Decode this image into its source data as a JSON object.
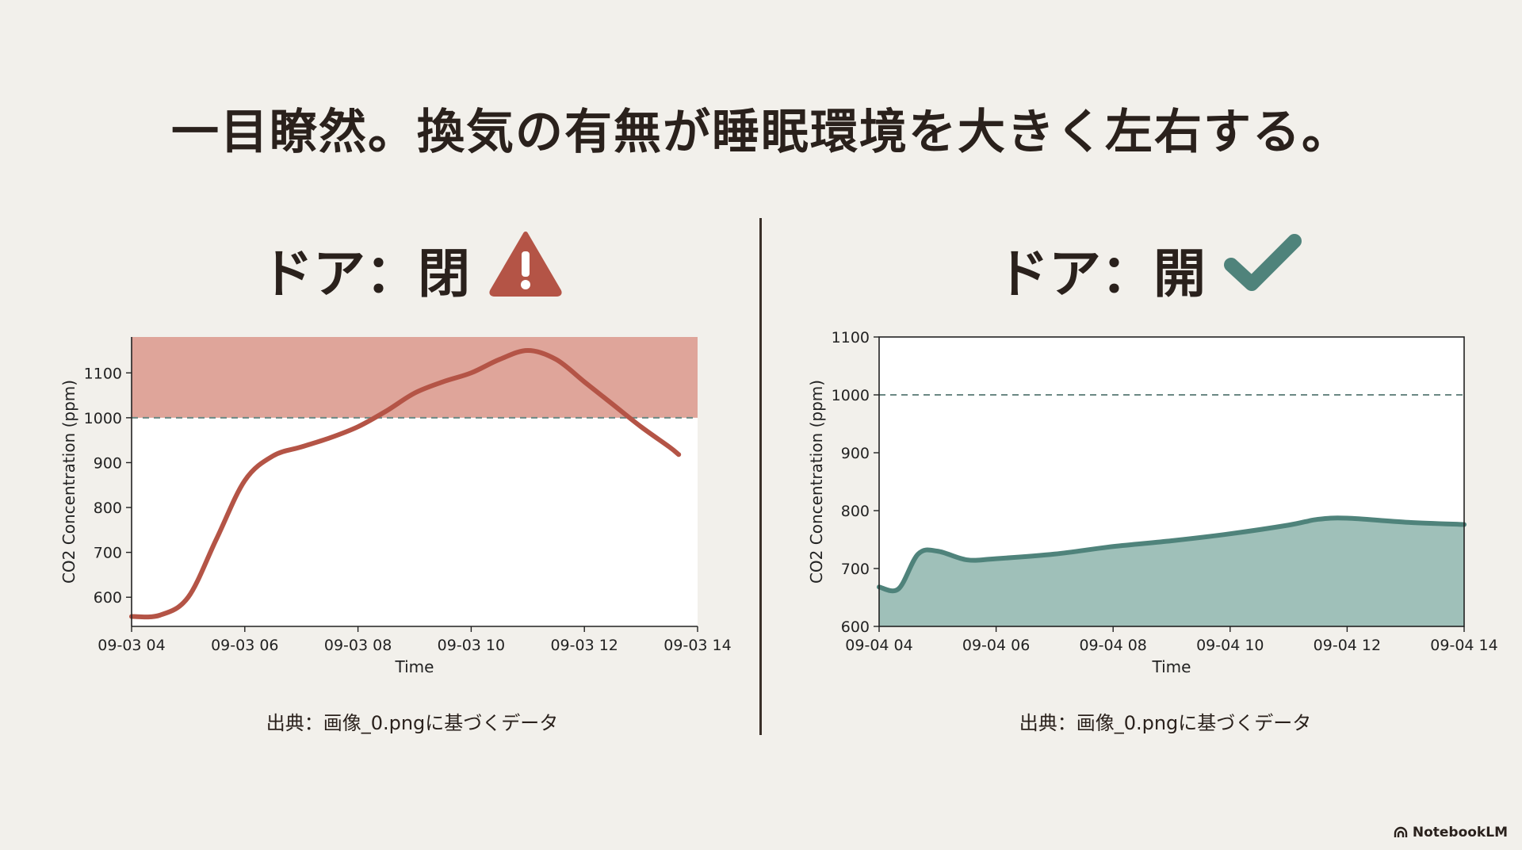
{
  "title": "一目瞭然。換気の有無が睡眠環境を大きく左右する。",
  "brand": "NotebookLM",
  "colors": {
    "danger": "#b45446",
    "danger_fill": "#dfa59a",
    "ok": "#4f837b",
    "ok_fill": "#9fc0b9",
    "text": "#2a211c"
  },
  "panels": [
    {
      "heading": "ドア：閉",
      "status_icon": "warning-icon",
      "source": "出典：画像_0.pngに基づくデータ"
    },
    {
      "heading": "ドア：開",
      "status_icon": "check-icon",
      "source": "出典：画像_0.pngに基づくデータ"
    }
  ],
  "chart_data": [
    {
      "type": "line",
      "xlabel": "Time",
      "ylabel": "CO2 Concentration (ppm)",
      "x_ticks": [
        "09-03 04",
        "09-03 06",
        "09-03 08",
        "09-03 10",
        "09-03 12",
        "09-03 14"
      ],
      "x_range": [
        "09-03 04",
        "09-03 14"
      ],
      "y_ticks": [
        600,
        700,
        800,
        900,
        1000,
        1100
      ],
      "ylim": [
        535,
        1180
      ],
      "threshold": 1000,
      "threshold_region": [
        1000,
        1180
      ],
      "grid": false,
      "series": [
        {
          "x": [
            "04:00",
            "04:30",
            "05:00",
            "05:30",
            "06:00",
            "06:30",
            "07:00",
            "07:30",
            "08:00",
            "08:30",
            "09:00",
            "09:30",
            "10:00",
            "10:30",
            "11:00",
            "11:30",
            "12:00",
            "12:30",
            "13:00",
            "13:30",
            "13:40"
          ],
          "values": [
            557,
            560,
            600,
            730,
            860,
            915,
            935,
            955,
            980,
            1015,
            1055,
            1080,
            1100,
            1130,
            1150,
            1130,
            1080,
            1030,
            980,
            935,
            918
          ]
        }
      ]
    },
    {
      "type": "area",
      "xlabel": "Time",
      "ylabel": "CO2 Concentration (ppm)",
      "x_ticks": [
        "09-04 04",
        "09-04 06",
        "09-04 08",
        "09-04 10",
        "09-04 12",
        "09-04 14"
      ],
      "x_range": [
        "09-04 04",
        "09-04 14"
      ],
      "y_ticks": [
        600,
        700,
        800,
        900,
        1000,
        1100
      ],
      "ylim": [
        600,
        1100
      ],
      "threshold": 1000,
      "grid": false,
      "series": [
        {
          "x": [
            "04:00",
            "04:20",
            "04:40",
            "05:00",
            "05:30",
            "06:00",
            "07:00",
            "08:00",
            "09:00",
            "10:00",
            "11:00",
            "11:30",
            "12:00",
            "13:00",
            "14:00"
          ],
          "values": [
            668,
            665,
            725,
            730,
            715,
            717,
            725,
            738,
            748,
            760,
            775,
            785,
            787,
            780,
            776
          ]
        }
      ]
    }
  ]
}
